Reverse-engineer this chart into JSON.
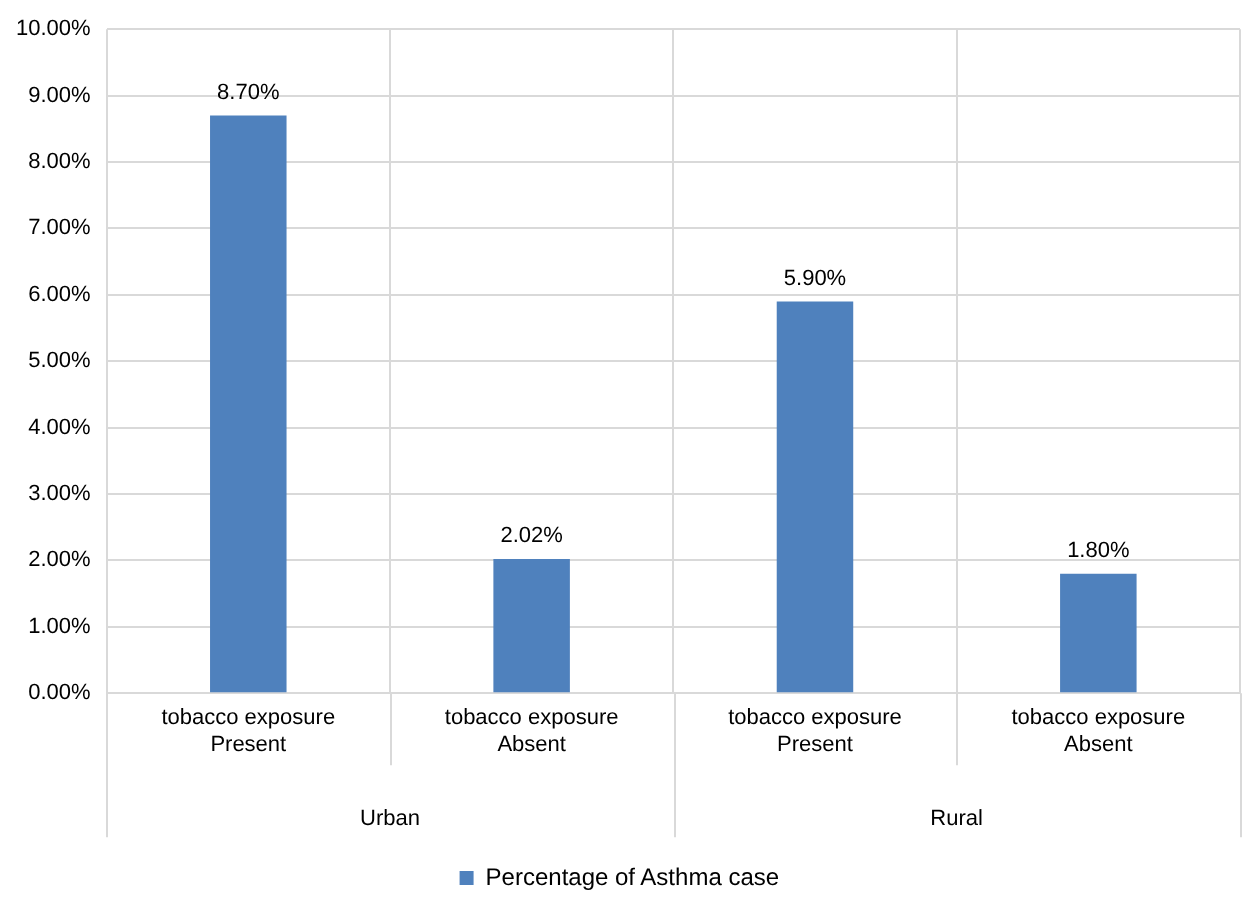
{
  "chart_data": {
    "type": "bar",
    "categories": [
      "tobacco exposure\nPresent",
      "tobacco exposure\nAbsent",
      "tobacco exposure\nPresent",
      "tobacco exposure\nAbsent"
    ],
    "series": [
      {
        "name": "Percentage of Asthma case",
        "color": "#4f81bd",
        "values": [
          8.7,
          2.02,
          5.9,
          1.8
        ],
        "value_labels": [
          "8.70%",
          "2.02%",
          "5.90%",
          "1.80%"
        ]
      }
    ],
    "annotations": [
      "Urban",
      "Rural"
    ],
    "ylim": [
      0,
      10
    ],
    "yticks": [
      {
        "value": 0,
        "label": "0.00%"
      },
      {
        "value": 1,
        "label": "1.00%"
      },
      {
        "value": 2,
        "label": "2.00%"
      },
      {
        "value": 3,
        "label": "3.00%"
      },
      {
        "value": 4,
        "label": "4.00%"
      },
      {
        "value": 5,
        "label": "5.00%"
      },
      {
        "value": 6,
        "label": "6.00%"
      },
      {
        "value": 7,
        "label": "7.00%"
      },
      {
        "value": 8,
        "label": "8.00%"
      },
      {
        "value": 9,
        "label": "9.00%"
      },
      {
        "value": 10,
        "label": "10.00%"
      }
    ],
    "grid": true,
    "legend": "bottom"
  }
}
